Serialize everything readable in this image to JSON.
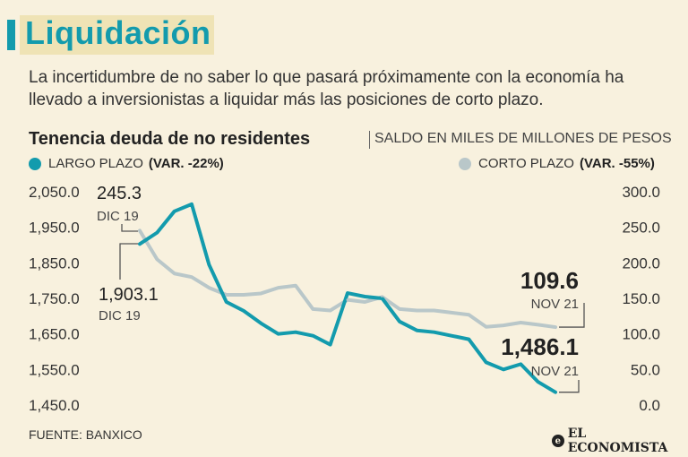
{
  "header": {
    "title": "Liquidación",
    "description": "La incertidumbre de no saber lo que pasará próximamente con la economía ha llevado a inversionistas a liquidar más las posiciones de corto plazo."
  },
  "chart_header": {
    "title": "Tenencia deuda de no residentes",
    "subtitle": "SALDO EN MILES DE MILLONES DE PESOS"
  },
  "legend": {
    "largo_label": "LARGO PLAZO",
    "largo_var": "(VAR. -22%)",
    "corto_label": "CORTO PLAZO",
    "corto_var": "(VAR. -55%)"
  },
  "colors": {
    "largo": "#139bad",
    "corto": "#b9c7c9",
    "background": "#f8f1de"
  },
  "chart_data": {
    "type": "line",
    "title": "Tenencia deuda de no residentes",
    "subtitle": "SALDO EN MILES DE MILLONES DE PESOS",
    "left_axis": {
      "ticks": [
        1450,
        1550,
        1650,
        1750,
        1850,
        1950,
        2050
      ],
      "tick_labels": [
        "1,450.0",
        "1,550.0",
        "1,650.0",
        "1,750.0",
        "1,850.0",
        "1,950.0",
        "2,050.0"
      ],
      "range": [
        1450,
        2060
      ]
    },
    "right_axis": {
      "ticks": [
        0,
        50,
        100,
        150,
        200,
        250,
        300
      ],
      "tick_labels": [
        "0.0",
        "50.0",
        "100.0",
        "150.0",
        "200.0",
        "250.0",
        "300.0"
      ],
      "range": [
        0,
        305
      ]
    },
    "series": [
      {
        "name": "LARGO PLAZO",
        "axis": "left",
        "values": [
          1903.1,
          1935,
          1995,
          2015,
          1845,
          1740,
          1715,
          1680,
          1650,
          1655,
          1645,
          1620,
          1765,
          1755,
          1750,
          1685,
          1660,
          1655,
          1645,
          1635,
          1570,
          1550,
          1565,
          1515,
          1486.1
        ]
      },
      {
        "name": "CORTO PLAZO",
        "axis": "right",
        "values": [
          245.3,
          205,
          185,
          180,
          165,
          155,
          155,
          157,
          165,
          168,
          135,
          133,
          148,
          145,
          152,
          135,
          133,
          133,
          130,
          127,
          110,
          112,
          116,
          113,
          109.6
        ]
      }
    ],
    "annotations": [
      {
        "series": "CORTO PLAZO",
        "point": "start",
        "value": "245.3",
        "date": "DIC 19"
      },
      {
        "series": "LARGO PLAZO",
        "point": "start",
        "value": "1,903.1",
        "date": "DIC 19"
      },
      {
        "series": "CORTO PLAZO",
        "point": "end",
        "value": "109.6",
        "date": "NOV 21"
      },
      {
        "series": "LARGO PLAZO",
        "point": "end",
        "value": "1,486.1",
        "date": "NOV 21"
      }
    ],
    "grid": false
  },
  "footer": {
    "source": "FUENTE: BANXICO",
    "logo": "EL ECONOMISTA"
  }
}
